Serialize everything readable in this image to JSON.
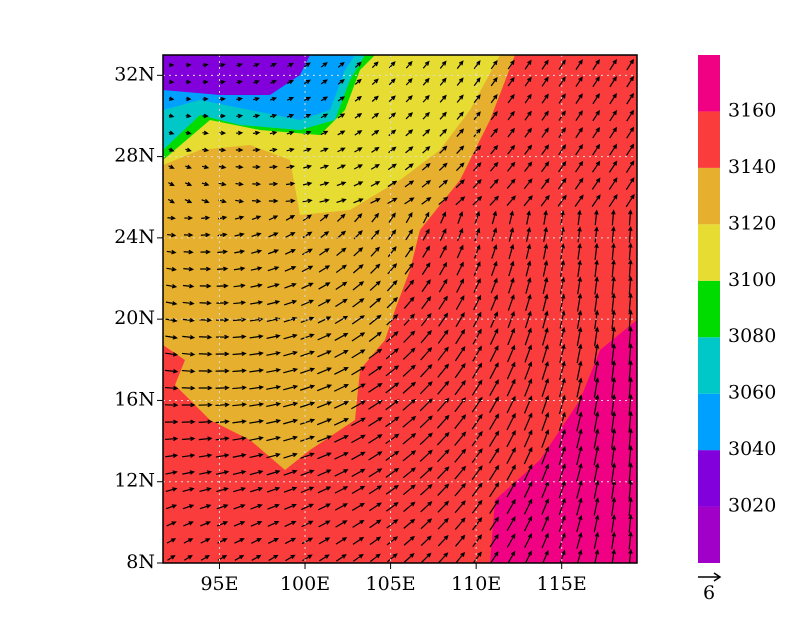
{
  "chart_data": {
    "type": "filled-contour",
    "xlim": [
      91.7,
      119.4
    ],
    "ylim": [
      8,
      33
    ],
    "xticks": [
      {
        "value": 95,
        "label": "95E"
      },
      {
        "value": 100,
        "label": "100E"
      },
      {
        "value": 105,
        "label": "105E"
      },
      {
        "value": 110,
        "label": "110E"
      },
      {
        "value": 115,
        "label": "115E"
      }
    ],
    "yticks": [
      {
        "value": 8,
        "label": "8N"
      },
      {
        "value": 12,
        "label": "12N"
      },
      {
        "value": 16,
        "label": "16N"
      },
      {
        "value": 20,
        "label": "20N"
      },
      {
        "value": 24,
        "label": "24N"
      },
      {
        "value": 28,
        "label": "28N"
      },
      {
        "value": 32,
        "label": "32N"
      }
    ],
    "grid": true,
    "colorbar": {
      "levels": [
        3020,
        3040,
        3060,
        3080,
        3100,
        3120,
        3140,
        3160
      ],
      "colors": [
        "#a000c8",
        "#8200dc",
        "#00a0ff",
        "#00c8c8",
        "#00dc00",
        "#e6dc32",
        "#e6af2d",
        "#fa3c3c",
        "#f00082"
      ]
    },
    "reference_vector": 6
  }
}
